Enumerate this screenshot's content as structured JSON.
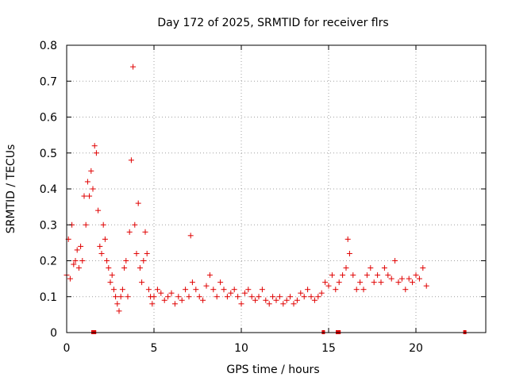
{
  "chart_data": {
    "type": "scatter",
    "title": "Day 172 of 2025, SRMTID for receiver flrs",
    "xlabel": "GPS time / hours",
    "ylabel": "SRMTID / TECUs",
    "xlim": [
      0,
      24
    ],
    "ylim": [
      0,
      0.8
    ],
    "xticks": [
      0,
      5,
      10,
      15,
      20
    ],
    "xtick_labels": [
      "0",
      "5",
      "10",
      "15",
      "20"
    ],
    "yticks": [
      0,
      0.1,
      0.2,
      0.3,
      0.4,
      0.5,
      0.6,
      0.7,
      0.8
    ],
    "ytick_labels": [
      "0",
      "0.1",
      "0.2",
      "0.3",
      "0.4",
      "0.5",
      "0.6",
      "0.7",
      "0.8"
    ],
    "grid": true,
    "marker": "plus",
    "color": "#e00000",
    "series": [
      {
        "name": "SRMTID",
        "x": [
          0.0,
          0.1,
          0.2,
          0.3,
          0.4,
          0.5,
          0.6,
          0.7,
          0.8,
          0.9,
          1.0,
          1.1,
          1.2,
          1.3,
          1.4,
          1.5,
          1.6,
          1.7,
          1.8,
          1.9,
          2.0,
          2.1,
          2.2,
          2.3,
          2.4,
          2.5,
          2.6,
          2.7,
          2.8,
          2.9,
          3.0,
          3.1,
          3.2,
          3.3,
          3.4,
          3.5,
          3.6,
          3.7,
          3.8,
          3.9,
          4.0,
          4.1,
          4.2,
          4.3,
          4.4,
          4.5,
          4.6,
          4.7,
          4.8,
          4.9,
          5.0,
          5.2,
          5.4,
          5.6,
          5.8,
          6.0,
          6.2,
          6.4,
          6.6,
          6.8,
          7.0,
          7.1,
          7.2,
          7.4,
          7.6,
          7.8,
          8.0,
          8.2,
          8.4,
          8.6,
          8.8,
          9.0,
          9.2,
          9.4,
          9.6,
          9.8,
          10.0,
          10.2,
          10.4,
          10.6,
          10.8,
          11.0,
          11.2,
          11.4,
          11.6,
          11.8,
          12.0,
          12.2,
          12.4,
          12.6,
          12.8,
          13.0,
          13.2,
          13.4,
          13.6,
          13.8,
          14.0,
          14.2,
          14.4,
          14.6,
          14.8,
          15.0,
          15.2,
          15.4,
          15.6,
          15.8,
          16.0,
          16.1,
          16.2,
          16.4,
          16.6,
          16.8,
          17.0,
          17.2,
          17.4,
          17.6,
          17.8,
          18.0,
          18.2,
          18.4,
          18.6,
          18.8,
          19.0,
          19.2,
          19.4,
          19.6,
          19.8,
          20.0,
          20.2,
          20.4,
          20.6
        ],
        "y": [
          0.16,
          0.26,
          0.15,
          0.3,
          0.19,
          0.2,
          0.23,
          0.18,
          0.24,
          0.2,
          0.38,
          0.3,
          0.42,
          0.38,
          0.45,
          0.4,
          0.52,
          0.5,
          0.34,
          0.24,
          0.22,
          0.3,
          0.26,
          0.2,
          0.18,
          0.14,
          0.16,
          0.12,
          0.1,
          0.08,
          0.06,
          0.1,
          0.12,
          0.18,
          0.2,
          0.1,
          0.28,
          0.48,
          0.74,
          0.3,
          0.22,
          0.36,
          0.18,
          0.14,
          0.2,
          0.28,
          0.22,
          0.12,
          0.1,
          0.08,
          0.1,
          0.12,
          0.11,
          0.09,
          0.1,
          0.11,
          0.08,
          0.1,
          0.09,
          0.12,
          0.1,
          0.27,
          0.14,
          0.12,
          0.1,
          0.09,
          0.13,
          0.16,
          0.12,
          0.1,
          0.14,
          0.12,
          0.1,
          0.11,
          0.12,
          0.1,
          0.08,
          0.11,
          0.12,
          0.1,
          0.09,
          0.1,
          0.12,
          0.09,
          0.08,
          0.1,
          0.09,
          0.1,
          0.08,
          0.09,
          0.1,
          0.08,
          0.09,
          0.11,
          0.1,
          0.12,
          0.1,
          0.09,
          0.1,
          0.11,
          0.14,
          0.13,
          0.16,
          0.12,
          0.14,
          0.16,
          0.18,
          0.26,
          0.22,
          0.16,
          0.12,
          0.14,
          0.12,
          0.16,
          0.18,
          0.14,
          0.16,
          0.14,
          0.18,
          0.16,
          0.15,
          0.2,
          0.14,
          0.15,
          0.12,
          0.15,
          0.14,
          0.16,
          0.15,
          0.18,
          0.13
        ]
      }
    ],
    "gap_markers_x": [
      1.5,
      1.6,
      14.7,
      15.5,
      15.6,
      22.8
    ]
  }
}
